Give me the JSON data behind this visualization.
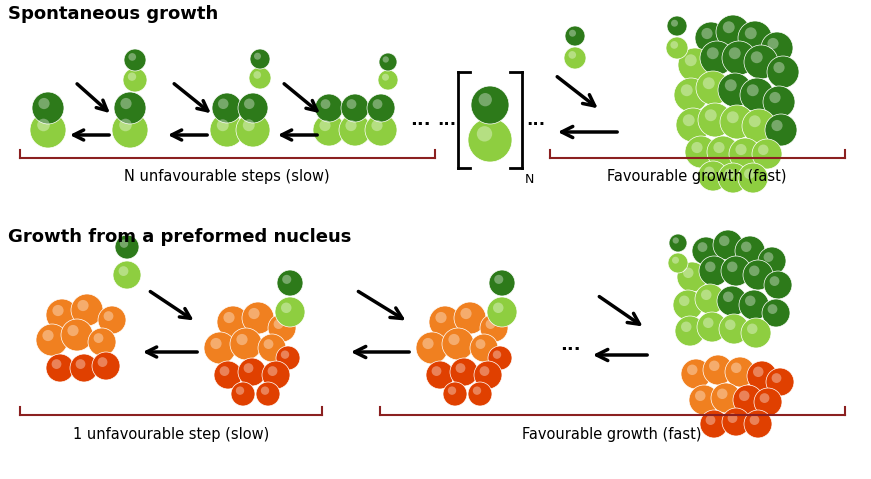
{
  "background_color": "#ffffff",
  "dark_green": "#2d7a1a",
  "light_green": "#8ece40",
  "orange": "#f08020",
  "dark_orange": "#e04000",
  "label_top_left": "Spontaneous growth",
  "label_bottom_left": "Growth from a preformed nucleus",
  "label_n_unfav": "N unfavourable steps (slow)",
  "label_fav_top": "Favourable growth (fast)",
  "label_1_unfav": "1 unfavourable step (slow)",
  "label_fav_bottom": "Favourable growth (fast)",
  "bracket_color": "#8b2020"
}
